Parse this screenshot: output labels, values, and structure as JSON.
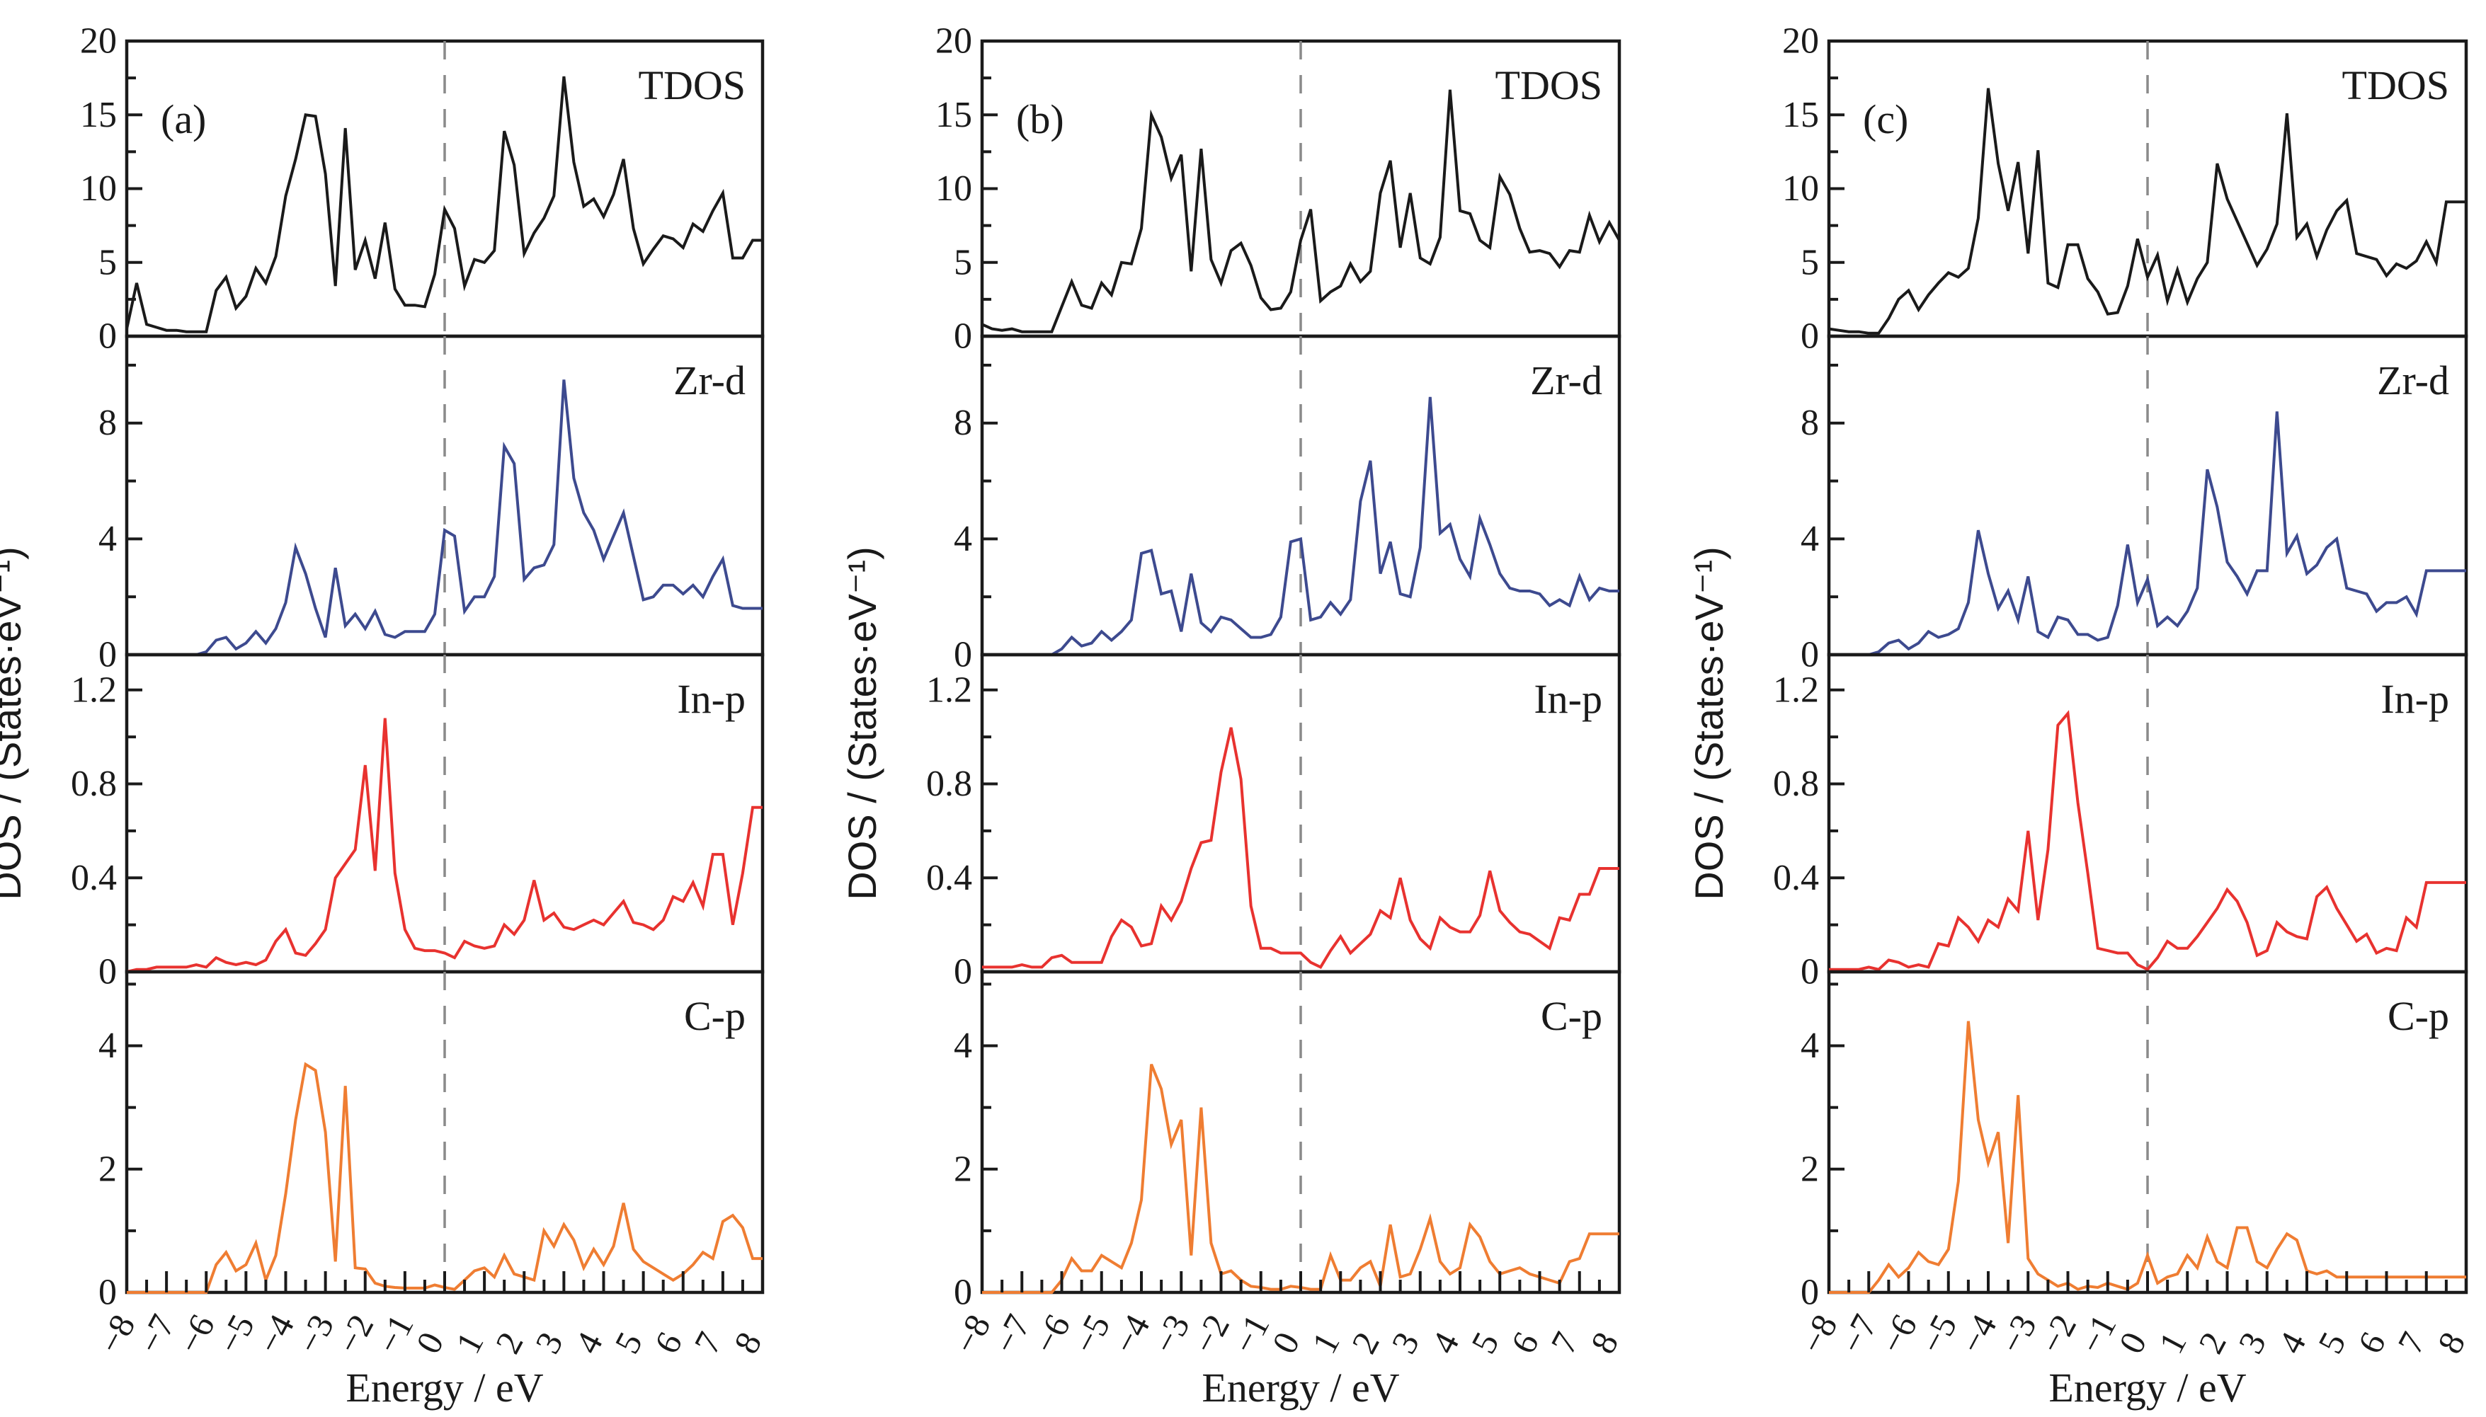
{
  "chart_data": {
    "type": "line",
    "xlabel": "Energy / eV",
    "ylabel": "DOS / (States·eV⁻¹)",
    "xlim": [
      -8,
      8
    ],
    "x_major_ticks": [
      -8,
      -7,
      -6,
      -5,
      -4,
      -3,
      -2,
      -1,
      0,
      1,
      2,
      3,
      4,
      5,
      6,
      7,
      8
    ],
    "x_tick_labels": [
      "-8",
      "-7",
      "-6",
      "-5",
      "-4",
      "-3",
      "-2",
      "-1",
      "0",
      "1",
      "2",
      "3",
      "4",
      "5",
      "6",
      "7",
      "8"
    ],
    "x_minor_step": 0.5,
    "fermi_level": 0,
    "fermi_line_style": "dashed",
    "x": [
      -8,
      -7.75,
      -7.5,
      -7.25,
      -7,
      -6.75,
      -6.5,
      -6.25,
      -6,
      -5.75,
      -5.5,
      -5.25,
      -5,
      -4.75,
      -4.5,
      -4.25,
      -4,
      -3.75,
      -3.5,
      -3.25,
      -3,
      -2.75,
      -2.5,
      -2.25,
      -2,
      -1.75,
      -1.5,
      -1.25,
      -1,
      -0.75,
      -0.5,
      -0.25,
      0,
      0.25,
      0.5,
      0.75,
      1,
      1.25,
      1.5,
      1.75,
      2,
      2.25,
      2.5,
      2.75,
      3,
      3.25,
      3.5,
      3.75,
      4,
      4.25,
      4.5,
      4.75,
      5,
      5.25,
      5.5,
      5.75,
      6,
      6.25,
      6.5,
      6.75,
      7,
      7.25,
      7.5,
      7.75,
      8
    ],
    "rows": [
      {
        "key": "tdos",
        "label": "TDOS",
        "color": "#1a1a1a",
        "ylim": [
          0,
          20
        ],
        "y_major_ticks": [
          0,
          5,
          10,
          15,
          20
        ],
        "y_tick_labels": [
          "0",
          "5",
          "10",
          "15",
          "20"
        ],
        "y_minor_step": 2.5
      },
      {
        "key": "zrd",
        "label": "Zr-d",
        "color": "#3d4a8f",
        "ylim": [
          0,
          11
        ],
        "y_major_ticks": [
          0,
          4,
          8
        ],
        "y_tick_labels": [
          "0",
          "4",
          "8"
        ],
        "y_minor_step": 2
      },
      {
        "key": "inp",
        "label": "In-p",
        "color": "#e8322f",
        "ylim": [
          0,
          1.35
        ],
        "y_major_ticks": [
          0,
          0.4,
          0.8,
          1.2
        ],
        "y_tick_labels": [
          "0",
          "0.4",
          "0.8",
          "1.2"
        ],
        "y_minor_step": 0.2
      },
      {
        "key": "cp",
        "label": "C-p",
        "color": "#ef7d32",
        "ylim": [
          0,
          5.2
        ],
        "y_major_ticks": [
          0,
          2,
          4
        ],
        "y_tick_labels": [
          "0",
          "2",
          "4"
        ],
        "y_minor_step": 1
      }
    ],
    "panels": [
      {
        "tag": "(a)",
        "series": {
          "tdos": [
            0.5,
            3.6,
            0.8,
            0.6,
            0.4,
            0.4,
            0.3,
            0.3,
            0.3,
            3.1,
            4.0,
            1.9,
            2.7,
            4.6,
            3.6,
            5.4,
            9.5,
            12.0,
            15.0,
            14.9,
            11.0,
            3.4,
            14.1,
            4.5,
            6.5,
            3.9,
            7.7,
            3.2,
            2.1,
            2.1,
            2.0,
            4.2,
            8.6,
            7.3,
            3.4,
            5.2,
            5.0,
            5.8,
            13.9,
            11.6,
            5.6,
            7.0,
            8.0,
            9.5,
            17.6,
            11.8,
            8.8,
            9.3,
            8.1,
            9.6,
            12.0,
            7.3,
            4.9,
            5.9,
            6.8,
            6.6,
            6.0,
            7.6,
            7.1,
            8.5,
            9.7,
            5.3,
            5.3,
            6.5,
            6.5
          ],
          "zrd": [
            0,
            0,
            0,
            0,
            0,
            0,
            0,
            0,
            0.1,
            0.5,
            0.6,
            0.2,
            0.4,
            0.8,
            0.4,
            0.9,
            1.8,
            3.7,
            2.8,
            1.6,
            0.6,
            3.0,
            1.0,
            1.4,
            0.9,
            1.5,
            0.7,
            0.6,
            0.8,
            0.8,
            0.8,
            1.4,
            4.3,
            4.1,
            1.5,
            2.0,
            2.0,
            2.7,
            7.2,
            6.6,
            2.6,
            3.0,
            3.1,
            3.8,
            9.5,
            6.1,
            4.9,
            4.3,
            3.3,
            4.1,
            4.9,
            3.4,
            1.9,
            2.0,
            2.4,
            2.4,
            2.1,
            2.4,
            2.0,
            2.7,
            3.3,
            1.7,
            1.6,
            1.6,
            1.6
          ],
          "inp": [
            0,
            0.01,
            0.01,
            0.02,
            0.02,
            0.02,
            0.02,
            0.03,
            0.02,
            0.06,
            0.04,
            0.03,
            0.04,
            0.03,
            0.05,
            0.13,
            0.18,
            0.08,
            0.07,
            0.12,
            0.18,
            0.4,
            0.46,
            0.52,
            0.88,
            0.43,
            1.08,
            0.42,
            0.18,
            0.1,
            0.09,
            0.09,
            0.08,
            0.06,
            0.13,
            0.11,
            0.1,
            0.11,
            0.2,
            0.16,
            0.22,
            0.39,
            0.22,
            0.25,
            0.19,
            0.18,
            0.2,
            0.22,
            0.2,
            0.25,
            0.3,
            0.21,
            0.2,
            0.18,
            0.22,
            0.32,
            0.3,
            0.38,
            0.28,
            0.5,
            0.5,
            0.2,
            0.42,
            0.7,
            0.7
          ],
          "cp": [
            0,
            0,
            0,
            0,
            0,
            0,
            0,
            0,
            0,
            0.45,
            0.65,
            0.35,
            0.45,
            0.8,
            0.2,
            0.6,
            1.6,
            2.8,
            3.7,
            3.6,
            2.6,
            0.5,
            3.35,
            0.4,
            0.38,
            0.15,
            0.1,
            0.08,
            0.07,
            0.07,
            0.07,
            0.12,
            0.08,
            0.05,
            0.2,
            0.35,
            0.4,
            0.25,
            0.6,
            0.3,
            0.25,
            0.2,
            1.0,
            0.75,
            1.1,
            0.85,
            0.4,
            0.7,
            0.45,
            0.75,
            1.45,
            0.7,
            0.5,
            0.4,
            0.3,
            0.2,
            0.3,
            0.45,
            0.65,
            0.55,
            1.15,
            1.25,
            1.05,
            0.55,
            0.55
          ]
        }
      },
      {
        "tag": "(b)",
        "series": {
          "tdos": [
            0.8,
            0.5,
            0.4,
            0.5,
            0.3,
            0.3,
            0.3,
            0.3,
            2.0,
            3.7,
            2.1,
            1.9,
            3.6,
            2.8,
            5.0,
            4.9,
            7.3,
            15.0,
            13.5,
            10.7,
            12.3,
            4.4,
            12.7,
            5.2,
            3.6,
            5.8,
            6.3,
            4.8,
            2.6,
            1.8,
            1.9,
            3.0,
            6.5,
            8.6,
            2.4,
            3.0,
            3.4,
            4.9,
            3.7,
            4.4,
            9.7,
            11.9,
            6.0,
            9.7,
            5.3,
            4.9,
            6.7,
            16.7,
            8.5,
            8.3,
            6.5,
            6.0,
            10.8,
            9.6,
            7.3,
            5.7,
            5.8,
            5.6,
            4.7,
            5.8,
            5.7,
            8.2,
            6.4,
            7.7,
            6.5
          ],
          "zrd": [
            0,
            0,
            0,
            0,
            0,
            0,
            0,
            0,
            0.2,
            0.6,
            0.3,
            0.4,
            0.8,
            0.5,
            0.8,
            1.2,
            3.5,
            3.6,
            2.1,
            2.2,
            0.8,
            2.8,
            1.1,
            0.8,
            1.3,
            1.2,
            0.9,
            0.6,
            0.6,
            0.7,
            1.3,
            3.9,
            4.0,
            1.2,
            1.3,
            1.8,
            1.4,
            1.9,
            5.3,
            6.7,
            2.8,
            3.9,
            2.1,
            2.0,
            3.7,
            8.9,
            4.2,
            4.5,
            3.3,
            2.7,
            4.7,
            3.8,
            2.8,
            2.3,
            2.2,
            2.2,
            2.1,
            1.7,
            1.9,
            1.7,
            2.7,
            1.9,
            2.3,
            2.2,
            2.2
          ],
          "inp": [
            0.02,
            0.02,
            0.02,
            0.02,
            0.03,
            0.02,
            0.02,
            0.06,
            0.07,
            0.04,
            0.04,
            0.04,
            0.04,
            0.15,
            0.22,
            0.19,
            0.11,
            0.12,
            0.28,
            0.22,
            0.3,
            0.44,
            0.55,
            0.56,
            0.85,
            1.04,
            0.82,
            0.28,
            0.1,
            0.1,
            0.08,
            0.08,
            0.08,
            0.04,
            0.02,
            0.09,
            0.15,
            0.08,
            0.12,
            0.16,
            0.26,
            0.23,
            0.4,
            0.22,
            0.14,
            0.1,
            0.23,
            0.19,
            0.17,
            0.17,
            0.24,
            0.43,
            0.26,
            0.21,
            0.17,
            0.16,
            0.13,
            0.1,
            0.23,
            0.22,
            0.33,
            0.33,
            0.44,
            0.44,
            0.44
          ],
          "cp": [
            0,
            0,
            0,
            0,
            0,
            0,
            0,
            0,
            0.2,
            0.55,
            0.35,
            0.35,
            0.6,
            0.5,
            0.4,
            0.8,
            1.5,
            3.7,
            3.3,
            2.4,
            2.8,
            0.6,
            3.0,
            0.8,
            0.3,
            0.35,
            0.2,
            0.1,
            0.08,
            0.05,
            0.05,
            0.1,
            0.08,
            0.05,
            0.05,
            0.6,
            0.2,
            0.2,
            0.4,
            0.5,
            0.1,
            1.1,
            0.25,
            0.3,
            0.7,
            1.2,
            0.5,
            0.3,
            0.4,
            1.1,
            0.9,
            0.5,
            0.3,
            0.35,
            0.4,
            0.3,
            0.25,
            0.2,
            0.15,
            0.5,
            0.55,
            0.95,
            0.95,
            0.95,
            0.95
          ]
        }
      },
      {
        "tag": "(c)",
        "series": {
          "tdos": [
            0.5,
            0.4,
            0.3,
            0.3,
            0.2,
            0.2,
            1.2,
            2.5,
            3.1,
            1.8,
            2.8,
            3.6,
            4.3,
            4.0,
            4.6,
            8.0,
            16.8,
            11.7,
            8.5,
            11.8,
            5.6,
            12.6,
            3.6,
            3.3,
            6.2,
            6.2,
            3.9,
            3.0,
            1.5,
            1.6,
            3.4,
            6.6,
            4.0,
            5.5,
            2.4,
            4.5,
            2.3,
            3.9,
            5.0,
            11.7,
            9.3,
            7.8,
            6.3,
            4.8,
            5.9,
            7.6,
            15.1,
            6.7,
            7.6,
            5.4,
            7.2,
            8.5,
            9.2,
            5.6,
            5.4,
            5.2,
            4.1,
            4.9,
            4.6,
            5.1,
            6.4,
            5.0,
            9.1,
            9.1,
            9.1
          ],
          "zrd": [
            0,
            0,
            0,
            0,
            0,
            0.1,
            0.4,
            0.5,
            0.2,
            0.4,
            0.8,
            0.6,
            0.7,
            0.9,
            1.8,
            4.3,
            2.8,
            1.6,
            2.2,
            1.2,
            2.7,
            0.8,
            0.6,
            1.3,
            1.2,
            0.7,
            0.7,
            0.5,
            0.6,
            1.7,
            3.8,
            1.8,
            2.6,
            1.0,
            1.3,
            1.0,
            1.5,
            2.3,
            6.4,
            5.1,
            3.2,
            2.7,
            2.1,
            2.9,
            2.9,
            8.4,
            3.5,
            4.1,
            2.8,
            3.1,
            3.7,
            4.0,
            2.3,
            2.2,
            2.1,
            1.5,
            1.8,
            1.8,
            2.0,
            1.4,
            2.9,
            2.9,
            2.9,
            2.9,
            2.9
          ],
          "inp": [
            0.01,
            0.01,
            0.01,
            0.01,
            0.02,
            0.01,
            0.05,
            0.04,
            0.02,
            0.03,
            0.02,
            0.12,
            0.11,
            0.23,
            0.19,
            0.13,
            0.22,
            0.19,
            0.31,
            0.26,
            0.6,
            0.22,
            0.52,
            1.05,
            1.1,
            0.72,
            0.42,
            0.1,
            0.09,
            0.08,
            0.08,
            0.03,
            0.01,
            0.06,
            0.13,
            0.1,
            0.1,
            0.15,
            0.21,
            0.27,
            0.35,
            0.3,
            0.21,
            0.07,
            0.09,
            0.21,
            0.17,
            0.15,
            0.14,
            0.32,
            0.36,
            0.27,
            0.2,
            0.13,
            0.16,
            0.08,
            0.1,
            0.09,
            0.23,
            0.19,
            0.38,
            0.38,
            0.38,
            0.38,
            0.38
          ],
          "cp": [
            0,
            0,
            0,
            0,
            0,
            0.2,
            0.45,
            0.25,
            0.4,
            0.65,
            0.5,
            0.45,
            0.7,
            1.8,
            4.4,
            2.8,
            2.1,
            2.6,
            0.8,
            3.2,
            0.55,
            0.3,
            0.2,
            0.1,
            0.15,
            0.05,
            0.1,
            0.08,
            0.15,
            0.1,
            0.05,
            0.15,
            0.6,
            0.15,
            0.25,
            0.3,
            0.6,
            0.4,
            0.9,
            0.5,
            0.4,
            1.05,
            1.05,
            0.5,
            0.4,
            0.7,
            0.95,
            0.85,
            0.35,
            0.3,
            0.35,
            0.25,
            0.25,
            0.25,
            0.25,
            0.25,
            0.25,
            0.25,
            0.25,
            0.25,
            0.25,
            0.25,
            0.25,
            0.25,
            0.25
          ]
        }
      }
    ]
  }
}
